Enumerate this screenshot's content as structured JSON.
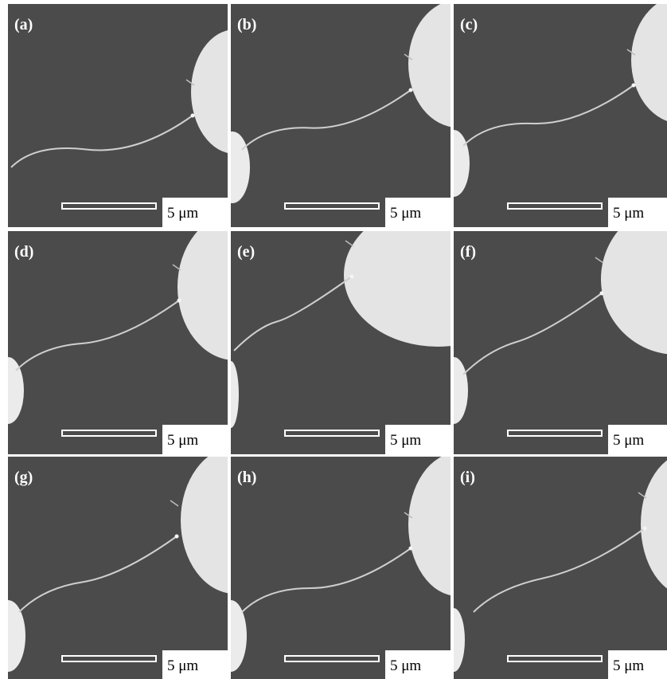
{
  "panels": [
    {
      "label": "(a)",
      "scale_bar": "5 μm"
    },
    {
      "label": "(b)",
      "scale_bar": "5 μm"
    },
    {
      "label": "(c)",
      "scale_bar": "5 μm"
    },
    {
      "label": "(d)",
      "scale_bar": "5 μm"
    },
    {
      "label": "(e)",
      "scale_bar": "5 μm"
    },
    {
      "label": "(f)",
      "scale_bar": "5 μm"
    },
    {
      "label": "(g)",
      "scale_bar": "5 μm"
    },
    {
      "label": "(h)",
      "scale_bar": "5 μm"
    },
    {
      "label": "(i)",
      "scale_bar": "5 μm"
    }
  ]
}
